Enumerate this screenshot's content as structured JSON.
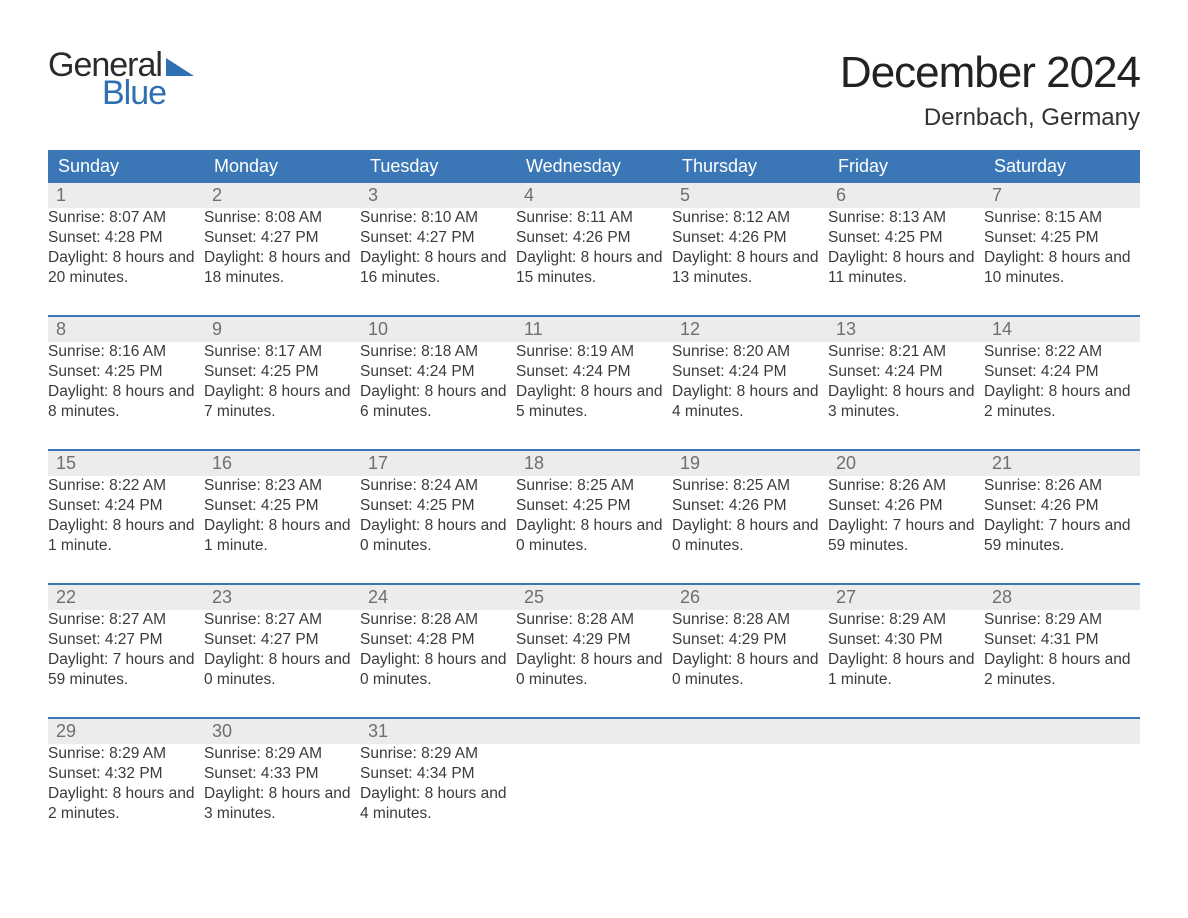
{
  "logo": {
    "text1": "General",
    "text2": "Blue"
  },
  "title": "December 2024",
  "subtitle": "Dernbach, Germany",
  "colors": {
    "header_bg": "#3b77b7",
    "header_text": "#ffffff",
    "daynum_bg": "#ececec",
    "daynum_text": "#6f6f6f",
    "rule": "#3b77b7",
    "body_text": "#3b3b3b",
    "logo_blue": "#2f6fb3"
  },
  "day_headers": [
    "Sunday",
    "Monday",
    "Tuesday",
    "Wednesday",
    "Thursday",
    "Friday",
    "Saturday"
  ],
  "weeks": [
    [
      {
        "n": "1",
        "sr": "8:07 AM",
        "ss": "4:28 PM",
        "dl": "8 hours and 20 minutes."
      },
      {
        "n": "2",
        "sr": "8:08 AM",
        "ss": "4:27 PM",
        "dl": "8 hours and 18 minutes."
      },
      {
        "n": "3",
        "sr": "8:10 AM",
        "ss": "4:27 PM",
        "dl": "8 hours and 16 minutes."
      },
      {
        "n": "4",
        "sr": "8:11 AM",
        "ss": "4:26 PM",
        "dl": "8 hours and 15 minutes."
      },
      {
        "n": "5",
        "sr": "8:12 AM",
        "ss": "4:26 PM",
        "dl": "8 hours and 13 minutes."
      },
      {
        "n": "6",
        "sr": "8:13 AM",
        "ss": "4:25 PM",
        "dl": "8 hours and 11 minutes."
      },
      {
        "n": "7",
        "sr": "8:15 AM",
        "ss": "4:25 PM",
        "dl": "8 hours and 10 minutes."
      }
    ],
    [
      {
        "n": "8",
        "sr": "8:16 AM",
        "ss": "4:25 PM",
        "dl": "8 hours and 8 minutes."
      },
      {
        "n": "9",
        "sr": "8:17 AM",
        "ss": "4:25 PM",
        "dl": "8 hours and 7 minutes."
      },
      {
        "n": "10",
        "sr": "8:18 AM",
        "ss": "4:24 PM",
        "dl": "8 hours and 6 minutes."
      },
      {
        "n": "11",
        "sr": "8:19 AM",
        "ss": "4:24 PM",
        "dl": "8 hours and 5 minutes."
      },
      {
        "n": "12",
        "sr": "8:20 AM",
        "ss": "4:24 PM",
        "dl": "8 hours and 4 minutes."
      },
      {
        "n": "13",
        "sr": "8:21 AM",
        "ss": "4:24 PM",
        "dl": "8 hours and 3 minutes."
      },
      {
        "n": "14",
        "sr": "8:22 AM",
        "ss": "4:24 PM",
        "dl": "8 hours and 2 minutes."
      }
    ],
    [
      {
        "n": "15",
        "sr": "8:22 AM",
        "ss": "4:24 PM",
        "dl": "8 hours and 1 minute."
      },
      {
        "n": "16",
        "sr": "8:23 AM",
        "ss": "4:25 PM",
        "dl": "8 hours and 1 minute."
      },
      {
        "n": "17",
        "sr": "8:24 AM",
        "ss": "4:25 PM",
        "dl": "8 hours and 0 minutes."
      },
      {
        "n": "18",
        "sr": "8:25 AM",
        "ss": "4:25 PM",
        "dl": "8 hours and 0 minutes."
      },
      {
        "n": "19",
        "sr": "8:25 AM",
        "ss": "4:26 PM",
        "dl": "8 hours and 0 minutes."
      },
      {
        "n": "20",
        "sr": "8:26 AM",
        "ss": "4:26 PM",
        "dl": "7 hours and 59 minutes."
      },
      {
        "n": "21",
        "sr": "8:26 AM",
        "ss": "4:26 PM",
        "dl": "7 hours and 59 minutes."
      }
    ],
    [
      {
        "n": "22",
        "sr": "8:27 AM",
        "ss": "4:27 PM",
        "dl": "7 hours and 59 minutes."
      },
      {
        "n": "23",
        "sr": "8:27 AM",
        "ss": "4:27 PM",
        "dl": "8 hours and 0 minutes."
      },
      {
        "n": "24",
        "sr": "8:28 AM",
        "ss": "4:28 PM",
        "dl": "8 hours and 0 minutes."
      },
      {
        "n": "25",
        "sr": "8:28 AM",
        "ss": "4:29 PM",
        "dl": "8 hours and 0 minutes."
      },
      {
        "n": "26",
        "sr": "8:28 AM",
        "ss": "4:29 PM",
        "dl": "8 hours and 0 minutes."
      },
      {
        "n": "27",
        "sr": "8:29 AM",
        "ss": "4:30 PM",
        "dl": "8 hours and 1 minute."
      },
      {
        "n": "28",
        "sr": "8:29 AM",
        "ss": "4:31 PM",
        "dl": "8 hours and 2 minutes."
      }
    ],
    [
      {
        "n": "29",
        "sr": "8:29 AM",
        "ss": "4:32 PM",
        "dl": "8 hours and 2 minutes."
      },
      {
        "n": "30",
        "sr": "8:29 AM",
        "ss": "4:33 PM",
        "dl": "8 hours and 3 minutes."
      },
      {
        "n": "31",
        "sr": "8:29 AM",
        "ss": "4:34 PM",
        "dl": "8 hours and 4 minutes."
      },
      null,
      null,
      null,
      null
    ]
  ],
  "labels": {
    "sunrise": "Sunrise:",
    "sunset": "Sunset:",
    "daylight": "Daylight:"
  }
}
